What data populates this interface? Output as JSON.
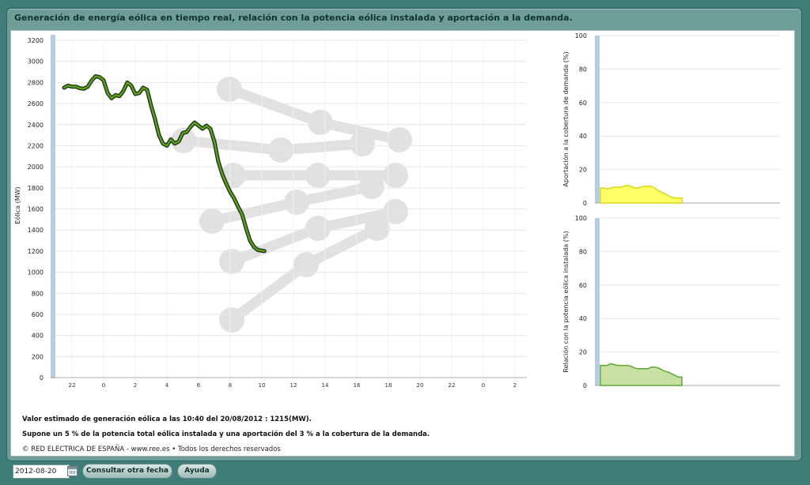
{
  "header": {
    "title": "Generación de energía eólica en tiempo real, relación con la potencia eólica instalada y aportación a la demanda."
  },
  "chart_data": [
    {
      "type": "line",
      "ylabel": "Eólica (MW)",
      "ylim": [
        0,
        3200
      ],
      "yticks": [
        0,
        200,
        400,
        600,
        800,
        1000,
        1200,
        1400,
        1600,
        1800,
        2000,
        2200,
        2400,
        2600,
        2800,
        3000,
        3200
      ],
      "xtick_labels": [
        "22",
        "0",
        "2",
        "4",
        "6",
        "8",
        "10",
        "12",
        "14",
        "16",
        "18",
        "20",
        "22",
        "0",
        "2"
      ],
      "grid": true,
      "x_hours": [
        0,
        0.25,
        0.5,
        0.75,
        1,
        1.25,
        1.5,
        1.75,
        2,
        2.25,
        2.5,
        2.75,
        3,
        3.25,
        3.5,
        3.75,
        4,
        4.25,
        4.5,
        4.75,
        5,
        5.25,
        5.5,
        5.75,
        6,
        6.25,
        6.5,
        6.75,
        7,
        7.25,
        7.5,
        7.75,
        8,
        8.25,
        8.5,
        8.75,
        9,
        9.25,
        9.5,
        9.75,
        10,
        10.25,
        10.5,
        10.75,
        11,
        11.25,
        11.5,
        11.75,
        12,
        12.25,
        12.67
      ],
      "series": [
        {
          "values": [
            2750,
            2770,
            2760,
            2760,
            2745,
            2740,
            2760,
            2820,
            2860,
            2850,
            2820,
            2700,
            2650,
            2680,
            2670,
            2720,
            2800,
            2770,
            2690,
            2700,
            2750,
            2730,
            2580,
            2450,
            2300,
            2220,
            2200,
            2260,
            2220,
            2240,
            2320,
            2330,
            2380,
            2420,
            2390,
            2360,
            2390,
            2360,
            2240,
            2050,
            1930,
            1840,
            1760,
            1700,
            1620,
            1550,
            1420,
            1300,
            1240,
            1210,
            1200
          ]
        }
      ]
    },
    {
      "type": "area",
      "ylabel": "Aportación a la cobertura de demanda (%)",
      "ylim": [
        0,
        100
      ],
      "yticks": [
        0,
        20,
        40,
        60,
        80,
        100
      ],
      "values": [
        9,
        9,
        8.5,
        9,
        9.5,
        9.5,
        9.5,
        10,
        10.5,
        10,
        9,
        9,
        9.5,
        10,
        10,
        10,
        9,
        7.5,
        6.5,
        5.5,
        4.5,
        3.5,
        3,
        3,
        3
      ]
    },
    {
      "type": "area",
      "ylabel": "Relación con la potencia eólica instalada (%)",
      "ylim": [
        0,
        100
      ],
      "yticks": [
        0,
        20,
        40,
        60,
        80,
        100
      ],
      "values": [
        12,
        12,
        12,
        13,
        12.5,
        12,
        12,
        12,
        12,
        11.5,
        10.5,
        10,
        10,
        10,
        10,
        11,
        11,
        10.5,
        9.5,
        8.5,
        8,
        7,
        6,
        5,
        5
      ]
    }
  ],
  "info": {
    "line1": "Valor estimado de generación eólica a las  10:40 del 20/08/2012  :  1215(MW).",
    "line2": "Supone un 5 % de la potencia total eólica instalada y una aportación del 3 % a la cobertura de la demanda.",
    "copyright": "© RED ELECTRICA DE ESPAÑA - www.ree.es • Todos los derechos reservados"
  },
  "controls": {
    "date_value": "2012-08-20",
    "other_date_label": "Consultar otra fecha",
    "help_label": "Ayuda"
  },
  "colors": {
    "line": "#57a020",
    "line_shadow": "#1e2a10",
    "demand_area": "#ffff66",
    "demand_line": "#d8d81a",
    "installed_area": "#c8e0a2",
    "installed_line": "#5ea83a",
    "axis_bar": "#b9cde0"
  }
}
